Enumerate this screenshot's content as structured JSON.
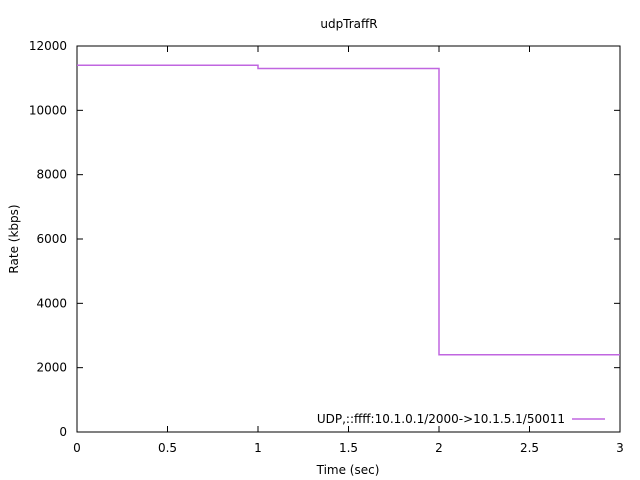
{
  "chart_data": {
    "type": "line",
    "title": "udpTraffR",
    "xlabel": "Time (sec)",
    "ylabel": "Rate (kbps)",
    "xlim": [
      0,
      3
    ],
    "ylim": [
      0,
      12000
    ],
    "xticks": [
      0,
      0.5,
      1,
      1.5,
      2,
      2.5,
      3
    ],
    "yticks": [
      0,
      2000,
      4000,
      6000,
      8000,
      10000,
      12000
    ],
    "grid": false,
    "legend_position": "bottom-right",
    "step": true,
    "series": [
      {
        "name": "UDP,::ffff:10.1.0.1/2000->10.1.5.1/50011",
        "color": "#c066e0",
        "x": [
          0,
          1,
          2,
          3
        ],
        "y": [
          11400,
          11300,
          2400,
          2400
        ]
      }
    ]
  }
}
